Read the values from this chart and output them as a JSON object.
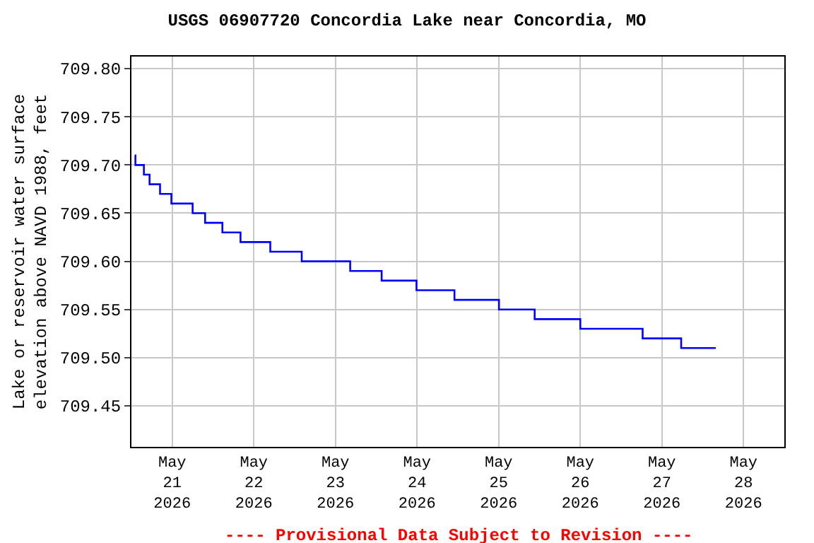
{
  "chart_data": {
    "type": "step",
    "title": "USGS 06907720 Concordia Lake near Concordia, MO",
    "ylabel": "Lake or reservoir water surface\nelevation above NAVD 1988, feet",
    "annotations": [
      "---- Provisional Data Subject to Revision ----"
    ],
    "x": [
      "2026-05-20T13:00",
      "2026-05-20T13:10",
      "2026-05-20T15:40",
      "2026-05-20T17:20",
      "2026-05-20T20:25",
      "2026-05-20T23:45",
      "2026-05-21T06:00",
      "2026-05-21T09:40",
      "2026-05-21T14:45",
      "2026-05-21T20:05",
      "2026-05-22T04:50",
      "2026-05-22T14:05",
      "2026-05-23T04:20",
      "2026-05-23T13:35",
      "2026-05-23T23:50",
      "2026-05-24T11:00",
      "2026-05-25T00:05",
      "2026-05-25T10:35",
      "2026-05-26T00:00",
      "2026-05-26T18:20",
      "2026-05-27T05:40",
      "2026-05-27T15:50"
    ],
    "series": [
      {
        "color": "#0000ff",
        "values": [
          709.71,
          709.7,
          709.69,
          709.68,
          709.67,
          709.66,
          709.65,
          709.64,
          709.63,
          709.62,
          709.61,
          709.6,
          709.59,
          709.58,
          709.57,
          709.56,
          709.55,
          709.54,
          709.53,
          709.52,
          709.51,
          709.51
        ]
      }
    ],
    "xlim": [
      "2026-05-20T12:00",
      "2026-05-28T12:00"
    ],
    "xticks": [
      {
        "value": "2026-05-21",
        "label": "May\n21\n2026"
      },
      {
        "value": "2026-05-22",
        "label": "May\n22\n2026"
      },
      {
        "value": "2026-05-23",
        "label": "May\n23\n2026"
      },
      {
        "value": "2026-05-24",
        "label": "May\n24\n2026"
      },
      {
        "value": "2026-05-25",
        "label": "May\n25\n2026"
      },
      {
        "value": "2026-05-26",
        "label": "May\n26\n2026"
      },
      {
        "value": "2026-05-27",
        "label": "May\n27\n2026"
      },
      {
        "value": "2026-05-28",
        "label": "May\n28\n2026"
      }
    ],
    "ylim": [
      709.4075,
      709.8125
    ],
    "yticks": [
      {
        "value": 709.45,
        "label": "709.45"
      },
      {
        "value": 709.5,
        "label": "709.50"
      },
      {
        "value": 709.55,
        "label": "709.55"
      },
      {
        "value": 709.6,
        "label": "709.60"
      },
      {
        "value": 709.65,
        "label": "709.65"
      },
      {
        "value": 709.7,
        "label": "709.70"
      },
      {
        "value": 709.75,
        "label": "709.75"
      },
      {
        "value": 709.8,
        "label": "709.80"
      }
    ],
    "grid": true,
    "legend": false,
    "marker": "none",
    "line_style": "solid"
  }
}
